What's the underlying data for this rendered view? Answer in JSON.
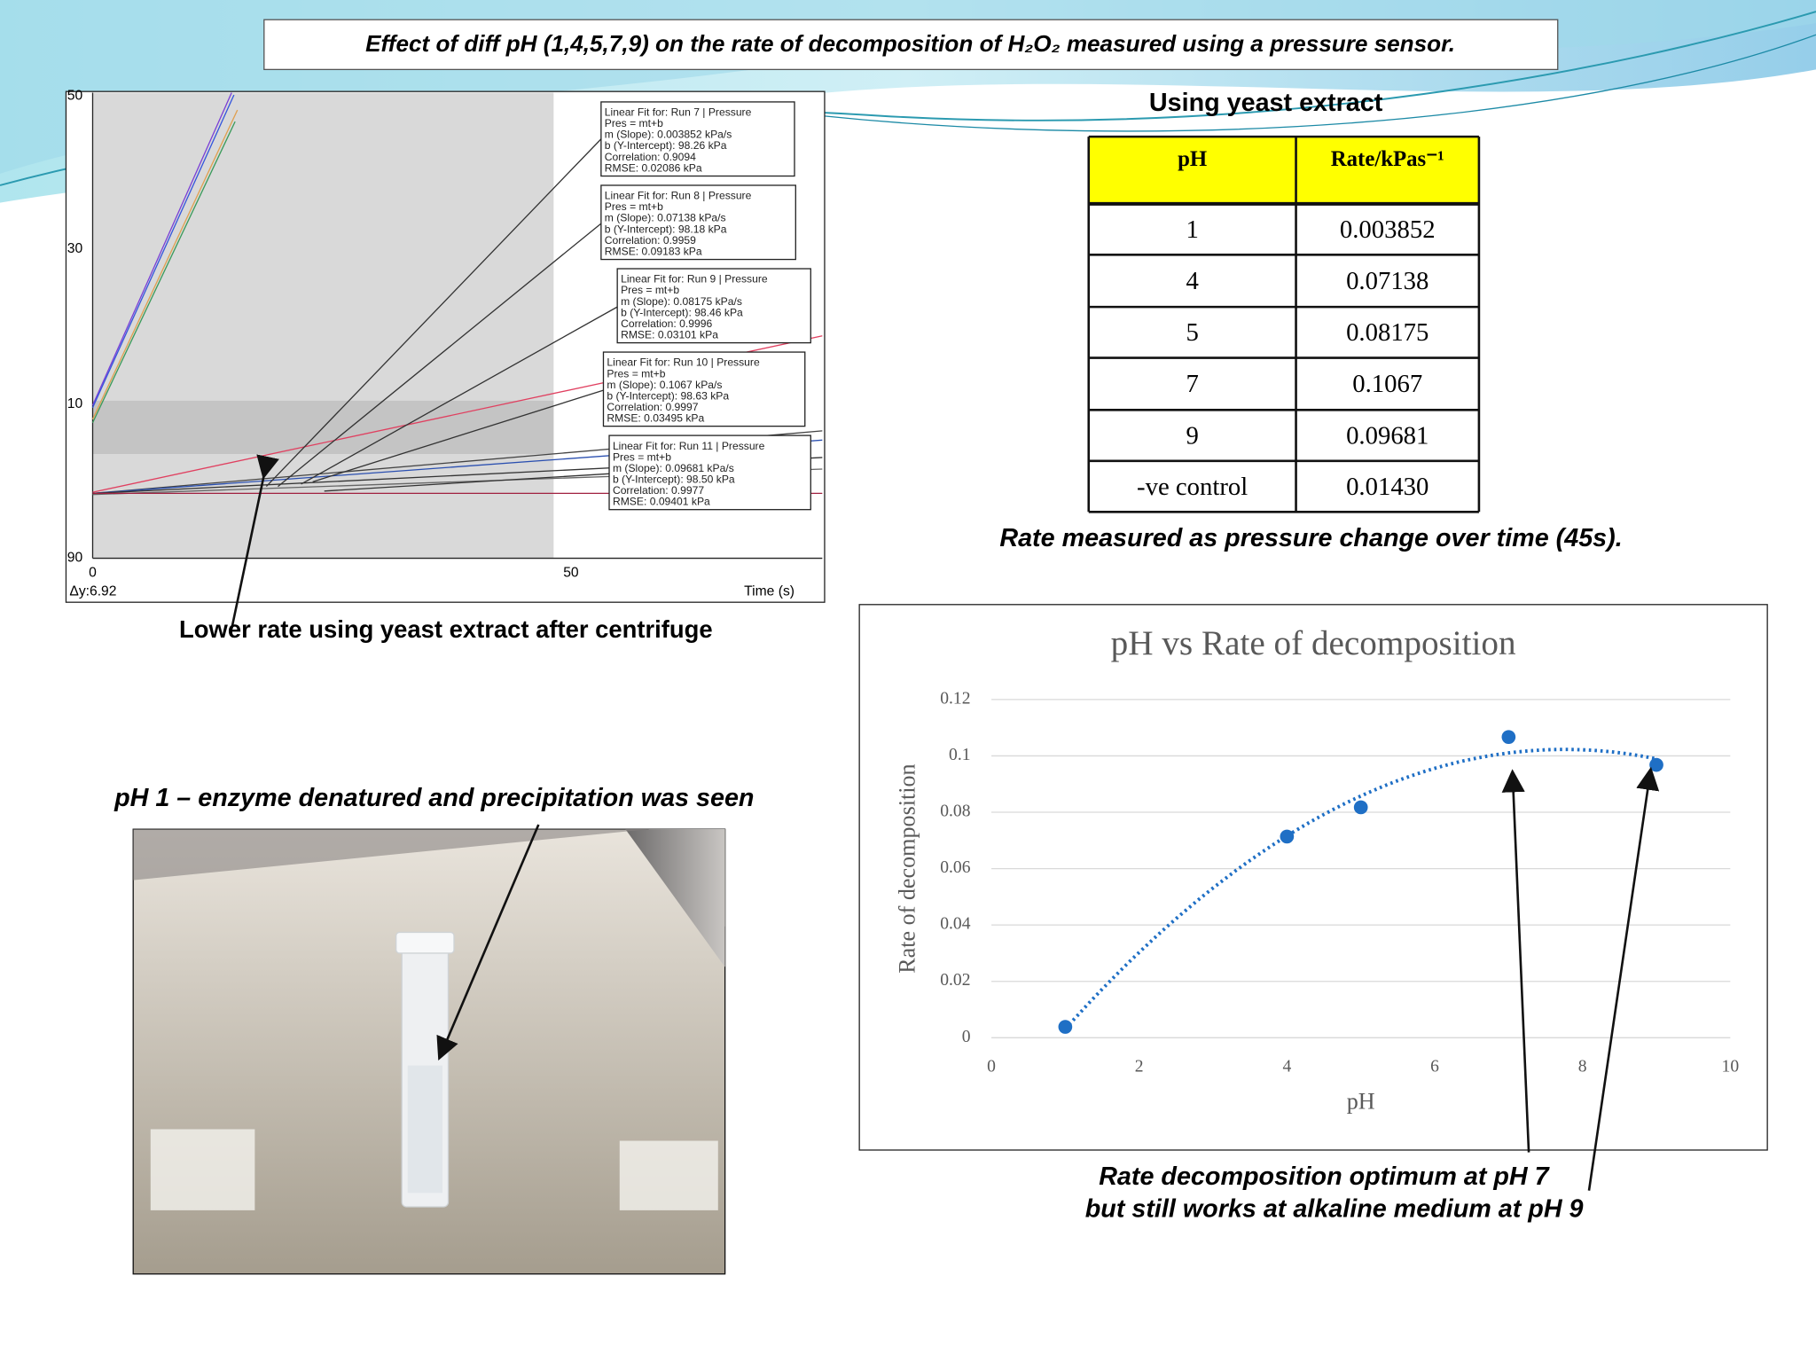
{
  "header": {
    "title": "Effect of diff pH (1,4,5,7,9) on the rate of decomposition of H₂O₂ measured using a pressure sensor."
  },
  "logger": {
    "yticks": [
      "50",
      "30",
      "10",
      "90"
    ],
    "xticks": [
      "0",
      "50"
    ],
    "delta": "Δy:6.92",
    "xlabel": "Time (s)",
    "fits": [
      [
        "Linear Fit for: Run 7 | Pressure",
        "Pres = mt+b",
        "m (Slope): 0.003852 kPa/s",
        "b (Y-Intercept): 98.26 kPa",
        "Correlation: 0.9094",
        "RMSE: 0.02086 kPa"
      ],
      [
        "Linear Fit for: Run 8 | Pressure",
        "Pres = mt+b",
        "m (Slope): 0.07138 kPa/s",
        "b (Y-Intercept): 98.18 kPa",
        "Correlation: 0.9959",
        "RMSE: 0.09183 kPa"
      ],
      [
        "Linear Fit for: Run 9 | Pressure",
        "Pres = mt+b",
        "m (Slope): 0.08175 kPa/s",
        "b (Y-Intercept): 98.46 kPa",
        "Correlation: 0.9996",
        "RMSE: 0.03101 kPa"
      ],
      [
        "Linear Fit for: Run 10 | Pressure",
        "Pres = mt+b",
        "m (Slope): 0.1067 kPa/s",
        "b (Y-Intercept): 98.63 kPa",
        "Correlation: 0.9997",
        "RMSE: 0.03495 kPa"
      ],
      [
        "Linear Fit for: Run 11 | Pressure",
        "Pres = mt+b",
        "m (Slope): 0.09681 kPa/s",
        "b (Y-Intercept): 98.50 kPa",
        "Correlation: 0.9977",
        "RMSE: 0.09401 kPa"
      ]
    ],
    "caption": "Lower rate using yeast extract after centrifuge"
  },
  "table": {
    "title": "Using yeast extract",
    "header": [
      "pH",
      "Rate/kPas⁻¹"
    ],
    "rows": [
      [
        "1",
        "0.003852"
      ],
      [
        "4",
        "0.07138"
      ],
      [
        "5",
        "0.08175"
      ],
      [
        "7",
        "0.1067"
      ],
      [
        "9",
        "0.09681"
      ],
      [
        "-ve control",
        "0.01430"
      ]
    ],
    "caption": "Rate measured as pressure change over time (45s)."
  },
  "photo": {
    "caption": "pH 1 – enzyme denatured and precipitation was seen"
  },
  "chart_data": {
    "type": "scatter",
    "title": "pH vs Rate of decomposition",
    "x_label": "pH",
    "y_label": "Rate of decomposition",
    "x": [
      1,
      4,
      5,
      7,
      9
    ],
    "values": [
      0.003852,
      0.07138,
      0.08175,
      0.1067,
      0.09681
    ],
    "color": "#1f6fc5",
    "trendline": "polynomial",
    "xlim": [
      0,
      10
    ],
    "xticks": [
      0,
      2,
      4,
      6,
      8,
      10
    ],
    "ylim": [
      0,
      0.12
    ],
    "yticks": [
      0,
      0.02,
      0.04,
      0.06,
      0.08,
      0.1,
      0.12
    ],
    "grid": true
  },
  "annotations": {
    "lines": [
      "Rate decomposition optimum at pH 7",
      "but still works at alkaline medium at pH 9"
    ]
  }
}
